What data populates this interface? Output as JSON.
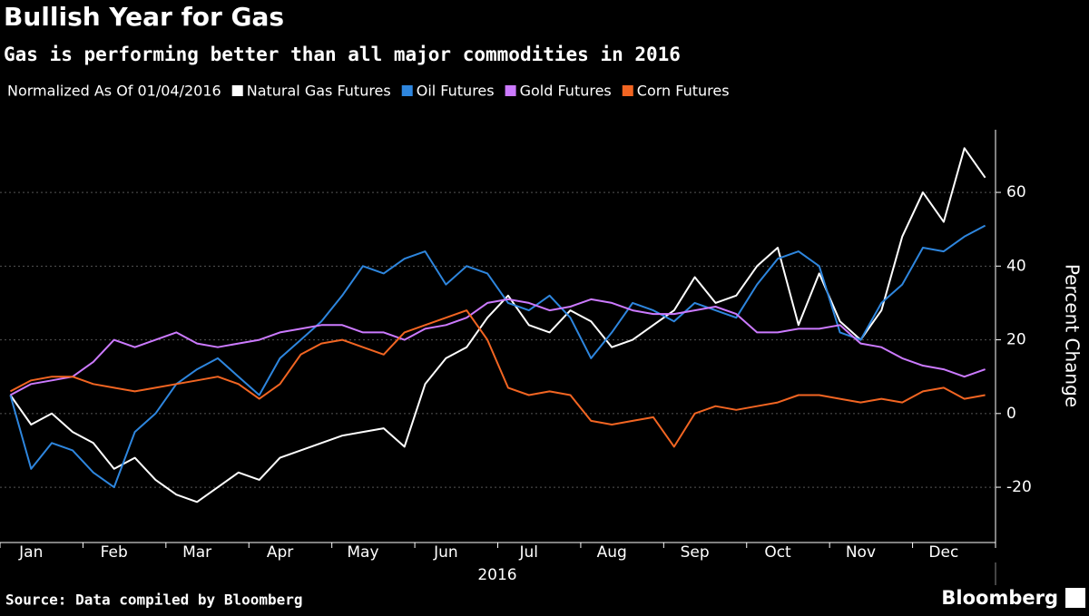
{
  "chart_data": {
    "type": "line",
    "title": "Bullish Year for Gas",
    "subtitle": "Gas is performing better than all major commodities in 2016",
    "legend_note": "Normalized As Of 01/04/2016",
    "x_label": "2016",
    "y_label": "Percent Change",
    "source": "Source: Data compiled by Bloomberg",
    "brand": "Bloomberg",
    "categories": [
      null,
      "Jan",
      null,
      null,
      null,
      "Feb",
      null,
      null,
      null,
      "Mar",
      null,
      null,
      null,
      "Apr",
      null,
      null,
      null,
      "May",
      null,
      null,
      null,
      "Jun",
      null,
      null,
      null,
      "Jul",
      null,
      null,
      null,
      "Aug",
      null,
      null,
      null,
      "Sep",
      null,
      null,
      null,
      "Oct",
      null,
      null,
      null,
      "Nov",
      null,
      null,
      null,
      "Dec",
      null,
      null
    ],
    "series": [
      {
        "name": "Natural Gas Futures",
        "color": "#ffffff",
        "values": [
          5,
          -3,
          0,
          -5,
          -8,
          -15,
          -12,
          -18,
          -22,
          -24,
          -20,
          -16,
          -18,
          -12,
          -10,
          -8,
          -6,
          -5,
          -4,
          -9,
          8,
          15,
          18,
          26,
          32,
          24,
          22,
          28,
          25,
          18,
          20,
          24,
          28,
          37,
          30,
          32,
          40,
          45,
          24,
          38,
          25,
          20,
          28,
          48,
          60,
          52,
          72,
          64
        ]
      },
      {
        "name": "Oil Futures",
        "color": "#2e86de",
        "values": [
          5,
          -15,
          -8,
          -10,
          -16,
          -20,
          -5,
          0,
          8,
          12,
          15,
          10,
          5,
          15,
          20,
          25,
          32,
          40,
          38,
          42,
          44,
          35,
          40,
          38,
          30,
          28,
          32,
          26,
          15,
          22,
          30,
          28,
          25,
          30,
          28,
          26,
          35,
          42,
          44,
          40,
          22,
          20,
          30,
          35,
          45,
          44,
          48,
          51
        ]
      },
      {
        "name": "Gold Futures",
        "color": "#cc7aff",
        "values": [
          5,
          8,
          9,
          10,
          14,
          20,
          18,
          20,
          22,
          19,
          18,
          19,
          20,
          22,
          23,
          24,
          24,
          22,
          22,
          20,
          23,
          24,
          26,
          30,
          31,
          30,
          28,
          29,
          31,
          30,
          28,
          27,
          27,
          28,
          29,
          27,
          22,
          22,
          23,
          23,
          24,
          19,
          18,
          15,
          13,
          12,
          10,
          12
        ]
      },
      {
        "name": "Corn Futures",
        "color": "#f26522",
        "values": [
          6,
          9,
          10,
          10,
          8,
          7,
          6,
          7,
          8,
          9,
          10,
          8,
          4,
          8,
          16,
          19,
          20,
          18,
          16,
          22,
          24,
          26,
          28,
          20,
          7,
          5,
          6,
          5,
          -2,
          -3,
          -2,
          -1,
          -9,
          0,
          2,
          1,
          2,
          3,
          5,
          5,
          4,
          3,
          4,
          3,
          6,
          7,
          4,
          5
        ]
      }
    ],
    "ylim": [
      -35,
      77
    ],
    "yticks": [
      -20,
      0,
      20,
      40,
      60
    ],
    "grid": true
  }
}
